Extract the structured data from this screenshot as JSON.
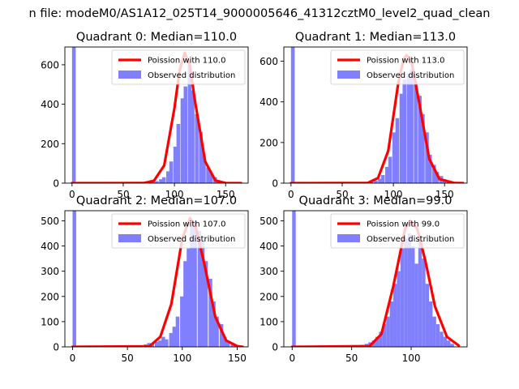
{
  "suptitle": "n file: modeM0/AS1A12_025T14_9000005646_41312cztM0_level2_quad_clean",
  "colors": {
    "hist": "#8080ff",
    "poisson": "#ff0000",
    "axes": "#000000",
    "background": "#ffffff"
  },
  "chart_data": [
    {
      "type": "bar",
      "title": "Quadrant 0: Median=110.0",
      "xlim": [
        -7,
        172
      ],
      "ylim": [
        0,
        690
      ],
      "xticks": [
        0,
        50,
        100,
        150
      ],
      "yticks": [
        0,
        200,
        400,
        600
      ],
      "legend": {
        "placement": "top-right",
        "entries": [
          "Poission with 110.0",
          "Observed distribution"
        ]
      },
      "poisson_mean": 110.0,
      "hist_bin_width": 3.6,
      "hist_bins": [
        [
          0,
          690
        ],
        [
          60,
          3
        ],
        [
          64,
          2
        ],
        [
          67,
          4
        ],
        [
          71,
          4
        ],
        [
          74,
          6
        ],
        [
          78,
          8
        ],
        [
          81,
          10
        ],
        [
          85,
          20
        ],
        [
          88,
          30
        ],
        [
          92,
          60
        ],
        [
          95,
          110
        ],
        [
          99,
          185
        ],
        [
          102,
          300
        ],
        [
          106,
          430
        ],
        [
          109,
          490
        ],
        [
          113,
          600
        ],
        [
          116,
          470
        ],
        [
          120,
          350
        ],
        [
          124,
          260
        ],
        [
          127,
          140
        ],
        [
          131,
          80
        ],
        [
          134,
          50
        ],
        [
          138,
          30
        ],
        [
          141,
          15
        ],
        [
          145,
          8
        ],
        [
          149,
          4
        ]
      ],
      "poisson_curve": [
        [
          0,
          0
        ],
        [
          70,
          0.3
        ],
        [
          80,
          12
        ],
        [
          90,
          90
        ],
        [
          100,
          380
        ],
        [
          105,
          570
        ],
        [
          110,
          660
        ],
        [
          115,
          600
        ],
        [
          120,
          420
        ],
        [
          130,
          110
        ],
        [
          140,
          13
        ],
        [
          150,
          1
        ],
        [
          165,
          0
        ]
      ]
    },
    {
      "type": "bar",
      "title": "Quadrant 1: Median=113.0",
      "xlim": [
        -7,
        172
      ],
      "ylim": [
        0,
        670
      ],
      "xticks": [
        0,
        50,
        100,
        150
      ],
      "yticks": [
        0,
        200,
        400,
        600
      ],
      "legend": {
        "placement": "top-right",
        "entries": [
          "Poission with 113.0",
          "Observed distribution"
        ]
      },
      "poisson_mean": 113.0,
      "hist_bin_width": 3.6,
      "hist_bins": [
        [
          0,
          670
        ],
        [
          70,
          3
        ],
        [
          74,
          5
        ],
        [
          77,
          8
        ],
        [
          81,
          12
        ],
        [
          85,
          22
        ],
        [
          88,
          40
        ],
        [
          92,
          80
        ],
        [
          95,
          130
        ],
        [
          99,
          250
        ],
        [
          102,
          320
        ],
        [
          106,
          440
        ],
        [
          109,
          510
        ],
        [
          113,
          540
        ],
        [
          116,
          560
        ],
        [
          120,
          500
        ],
        [
          124,
          430
        ],
        [
          127,
          340
        ],
        [
          131,
          250
        ],
        [
          134,
          140
        ],
        [
          138,
          90
        ],
        [
          141,
          55
        ],
        [
          145,
          35
        ],
        [
          148,
          20
        ],
        [
          152,
          10
        ],
        [
          156,
          6
        ],
        [
          159,
          3
        ]
      ],
      "poisson_curve": [
        [
          0,
          0
        ],
        [
          75,
          1
        ],
        [
          85,
          25
        ],
        [
          95,
          160
        ],
        [
          105,
          500
        ],
        [
          110,
          610
        ],
        [
          113,
          630
        ],
        [
          118,
          590
        ],
        [
          125,
          400
        ],
        [
          135,
          120
        ],
        [
          145,
          20
        ],
        [
          160,
          0.5
        ],
        [
          168,
          0
        ]
      ]
    },
    {
      "type": "bar",
      "title": "Quadrant 2: Median=107.0",
      "xlim": [
        -7,
        160
      ],
      "ylim": [
        0,
        540
      ],
      "xticks": [
        0,
        50,
        100,
        150
      ],
      "yticks": [
        0,
        100,
        200,
        300,
        400,
        500
      ],
      "legend": {
        "placement": "top-right",
        "entries": [
          "Poission with 107.0",
          "Observed distribution"
        ]
      },
      "poisson_mean": 107.0,
      "hist_bin_width": 3.3,
      "hist_bins": [
        [
          0,
          540
        ],
        [
          65,
          10
        ],
        [
          68,
          15
        ],
        [
          71,
          12
        ],
        [
          75,
          20
        ],
        [
          78,
          25
        ],
        [
          81,
          40
        ],
        [
          84,
          30
        ],
        [
          88,
          55
        ],
        [
          91,
          80
        ],
        [
          94,
          120
        ],
        [
          98,
          200
        ],
        [
          101,
          340
        ],
        [
          104,
          390
        ],
        [
          107,
          480
        ],
        [
          110,
          500
        ],
        [
          114,
          460
        ],
        [
          117,
          420
        ],
        [
          120,
          340
        ],
        [
          124,
          270
        ],
        [
          127,
          180
        ],
        [
          130,
          120
        ],
        [
          134,
          90
        ],
        [
          137,
          40
        ],
        [
          140,
          20
        ],
        [
          144,
          8
        ]
      ],
      "poisson_curve": [
        [
          0,
          0
        ],
        [
          70,
          2
        ],
        [
          80,
          40
        ],
        [
          90,
          170
        ],
        [
          100,
          430
        ],
        [
          107,
          510
        ],
        [
          112,
          480
        ],
        [
          120,
          330
        ],
        [
          130,
          120
        ],
        [
          140,
          25
        ],
        [
          150,
          3
        ],
        [
          155,
          0
        ]
      ]
    },
    {
      "type": "bar",
      "title": "Quadrant 3: Median=99.0",
      "xlim": [
        -7,
        147
      ],
      "ylim": [
        0,
        540
      ],
      "xticks": [
        0,
        50,
        100
      ],
      "yticks": [
        0,
        100,
        200,
        300,
        400,
        500
      ],
      "legend": {
        "placement": "top-right",
        "entries": [
          "Poission with 99.0",
          "Observed distribution"
        ]
      },
      "poisson_mean": 99.0,
      "hist_bin_width": 3.0,
      "hist_bins": [
        [
          0,
          540
        ],
        [
          55,
          5
        ],
        [
          58,
          8
        ],
        [
          61,
          12
        ],
        [
          64,
          18
        ],
        [
          67,
          25
        ],
        [
          70,
          40
        ],
        [
          73,
          60
        ],
        [
          76,
          90
        ],
        [
          79,
          120
        ],
        [
          82,
          180
        ],
        [
          85,
          250
        ],
        [
          88,
          300
        ],
        [
          91,
          390
        ],
        [
          94,
          430
        ],
        [
          97,
          450
        ],
        [
          100,
          400
        ],
        [
          103,
          330
        ],
        [
          106,
          420
        ],
        [
          109,
          350
        ],
        [
          112,
          250
        ],
        [
          115,
          180
        ],
        [
          118,
          120
        ],
        [
          121,
          90
        ],
        [
          124,
          60
        ],
        [
          127,
          40
        ],
        [
          130,
          25
        ],
        [
          133,
          12
        ]
      ],
      "poisson_curve": [
        [
          0,
          0
        ],
        [
          65,
          3
        ],
        [
          75,
          50
        ],
        [
          85,
          240
        ],
        [
          95,
          470
        ],
        [
          99,
          500
        ],
        [
          105,
          470
        ],
        [
          112,
          340
        ],
        [
          120,
          160
        ],
        [
          130,
          40
        ],
        [
          140,
          5
        ]
      ]
    }
  ]
}
